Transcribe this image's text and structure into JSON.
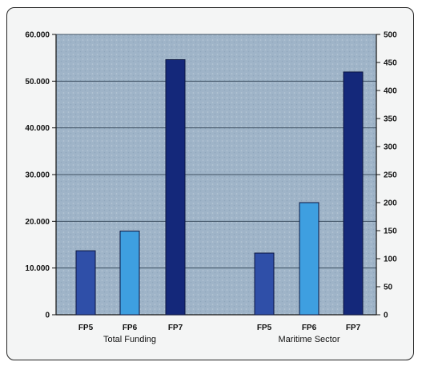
{
  "chart_data": {
    "type": "bar",
    "groups": [
      {
        "label": "Total Funding",
        "axis": "left",
        "categories": [
          "FP5",
          "FP6",
          "FP7"
        ],
        "values": [
          13700,
          17900,
          54600
        ]
      },
      {
        "label": "Maritime Sector",
        "axis": "right",
        "categories": [
          "FP5",
          "FP6",
          "FP7"
        ],
        "values": [
          110,
          200,
          433
        ]
      }
    ],
    "bar_colors": [
      "#2f4fa8",
      "#3e9fe0",
      "#14287a"
    ],
    "left_axis": {
      "ylim": [
        0,
        60000
      ],
      "ticks": [
        0,
        10000,
        20000,
        30000,
        40000,
        50000,
        60000
      ],
      "tick_labels": [
        "0",
        "10.000",
        "20.000",
        "30.000",
        "40.000",
        "50.000",
        "60.000"
      ]
    },
    "right_axis": {
      "ylim": [
        0,
        500
      ],
      "ticks": [
        0,
        50,
        100,
        150,
        200,
        250,
        300,
        350,
        400,
        450,
        500
      ],
      "tick_labels": [
        "0",
        "50",
        "100",
        "150",
        "200",
        "250",
        "300",
        "350",
        "400",
        "450",
        "500"
      ]
    },
    "grid": true,
    "plot_background": "#9fb4c8"
  }
}
